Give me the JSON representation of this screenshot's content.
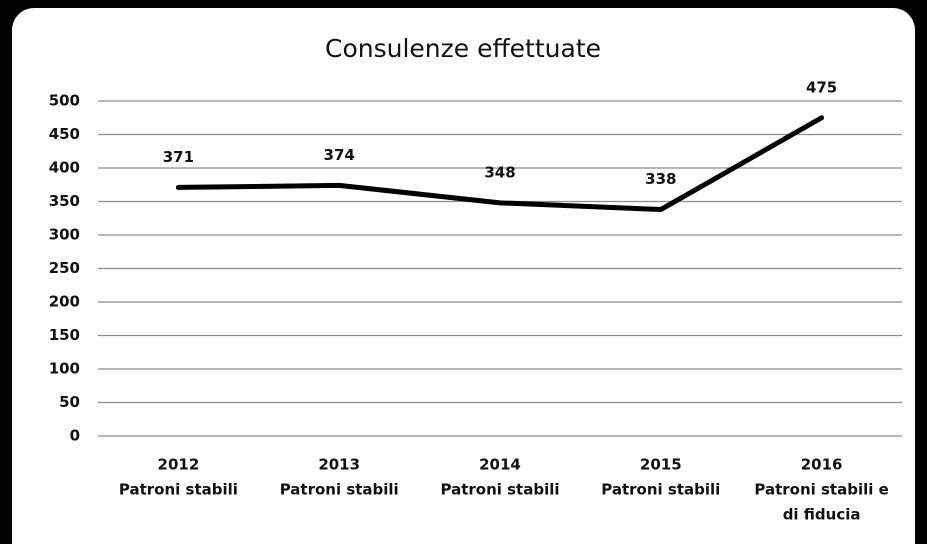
{
  "chart_data": {
    "type": "line",
    "title": "Consulenze effettuate",
    "categories": [
      [
        "2012",
        "Patroni stabili"
      ],
      [
        "2013",
        "Patroni stabili"
      ],
      [
        "2014",
        "Patroni stabili"
      ],
      [
        "2015",
        "Patroni stabili"
      ],
      [
        "2016",
        "Patroni stabili e",
        "di fiducia"
      ]
    ],
    "values": [
      371,
      374,
      348,
      338,
      475
    ],
    "color": "#000000",
    "ylim": [
      0,
      500
    ],
    "yticks": [
      0,
      50,
      100,
      150,
      200,
      250,
      300,
      350,
      400,
      450,
      500
    ],
    "grid": true
  }
}
